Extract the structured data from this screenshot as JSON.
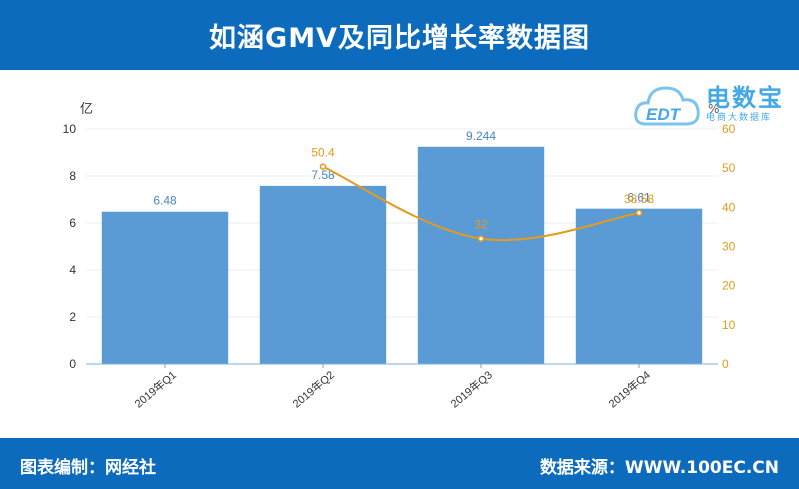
{
  "header": {
    "title": "如涵GMV及同比增长率数据图"
  },
  "footer": {
    "left": "图表编制：网经社",
    "right": "数据来源：WWW.100EC.CN"
  },
  "logo": {
    "brand": "电数宝",
    "sub": "电商大数据库",
    "mark": "EDT"
  },
  "colors": {
    "bar": "#5b9bd5",
    "line": "#e39b1c",
    "header": "#0d6bbd",
    "bar_label": "#4a86c0"
  },
  "chart_data": {
    "type": "bar",
    "title": "",
    "categories": [
      "2019年Q1",
      "2019年Q2",
      "2019年Q3",
      "2019年Q4"
    ],
    "y_left": {
      "unit": "亿",
      "ticks": [
        0,
        2,
        4,
        6,
        8,
        10
      ],
      "range": [
        0,
        10
      ]
    },
    "y_right": {
      "unit": "%",
      "ticks": [
        0,
        10,
        20,
        30,
        40,
        50,
        60
      ],
      "range": [
        0,
        60
      ]
    },
    "series": [
      {
        "type": "bar",
        "axis": "left",
        "values": [
          6.48,
          7.58,
          9.244,
          6.61
        ],
        "labels": [
          "6.48",
          "7.58",
          "9.244",
          "6.61"
        ]
      },
      {
        "type": "line",
        "axis": "right",
        "values": [
          null,
          50.4,
          32,
          38.58
        ],
        "labels": [
          "",
          "50.4",
          "32",
          "38.58"
        ]
      }
    ],
    "grid": true,
    "legend": "none"
  }
}
